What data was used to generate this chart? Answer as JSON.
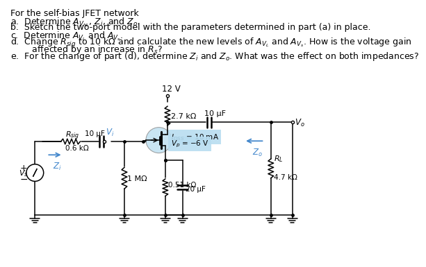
{
  "bg_color": "#ffffff",
  "text_color": "#000000",
  "title": "For the self-bias JFET network",
  "line_a": "a.  Determine $A_{V_{NL}}$, $Z_i$, and $Z_o$.",
  "line_b": "b.  Sketch the two-port model with the parameters determined in part (a) in place.",
  "line_c": "c.  Determine $A_{V_L}$ and $A_{V_s}$.",
  "line_d1": "d.  Change $R_{sig}$ to 10 k$\\Omega$ and calculate the new levels of $A_{V_L}$ and $A_{V_s}$. How is the voltage gain",
  "line_d2": "     affected by an increase in $R_s$?",
  "line_e": "e.  For the change of part (d), determine $Z_i$ and $Z_o$. What was the effect on both impedances?",
  "VDD": "12 V",
  "RD_label": "2.7 kΩ",
  "CD_label": "10 μF",
  "IDSS_label": "$I_{DSS}$ = 10 mA",
  "VP_label": "$V_p$ = −6 V",
  "Rsig_label": "$R_{sig}$",
  "Rsig_val": "0.6 kΩ",
  "Cin_label": "10 μF",
  "RG_label": "1 MΩ",
  "RS_label": "0.51 kΩ",
  "CS_label": "20 μF",
  "RL_label": "$R_L$",
  "RL_val": "4.7 kΩ",
  "Vo_label": "$V_o$",
  "Vi_label": "$V_i$",
  "Vs_label": "$V_s$",
  "Zi_label": "$Z_i$",
  "Zo_label": "$Z_o$",
  "arrow_color": "#4488cc",
  "jfet_color": "#b8ddf0"
}
